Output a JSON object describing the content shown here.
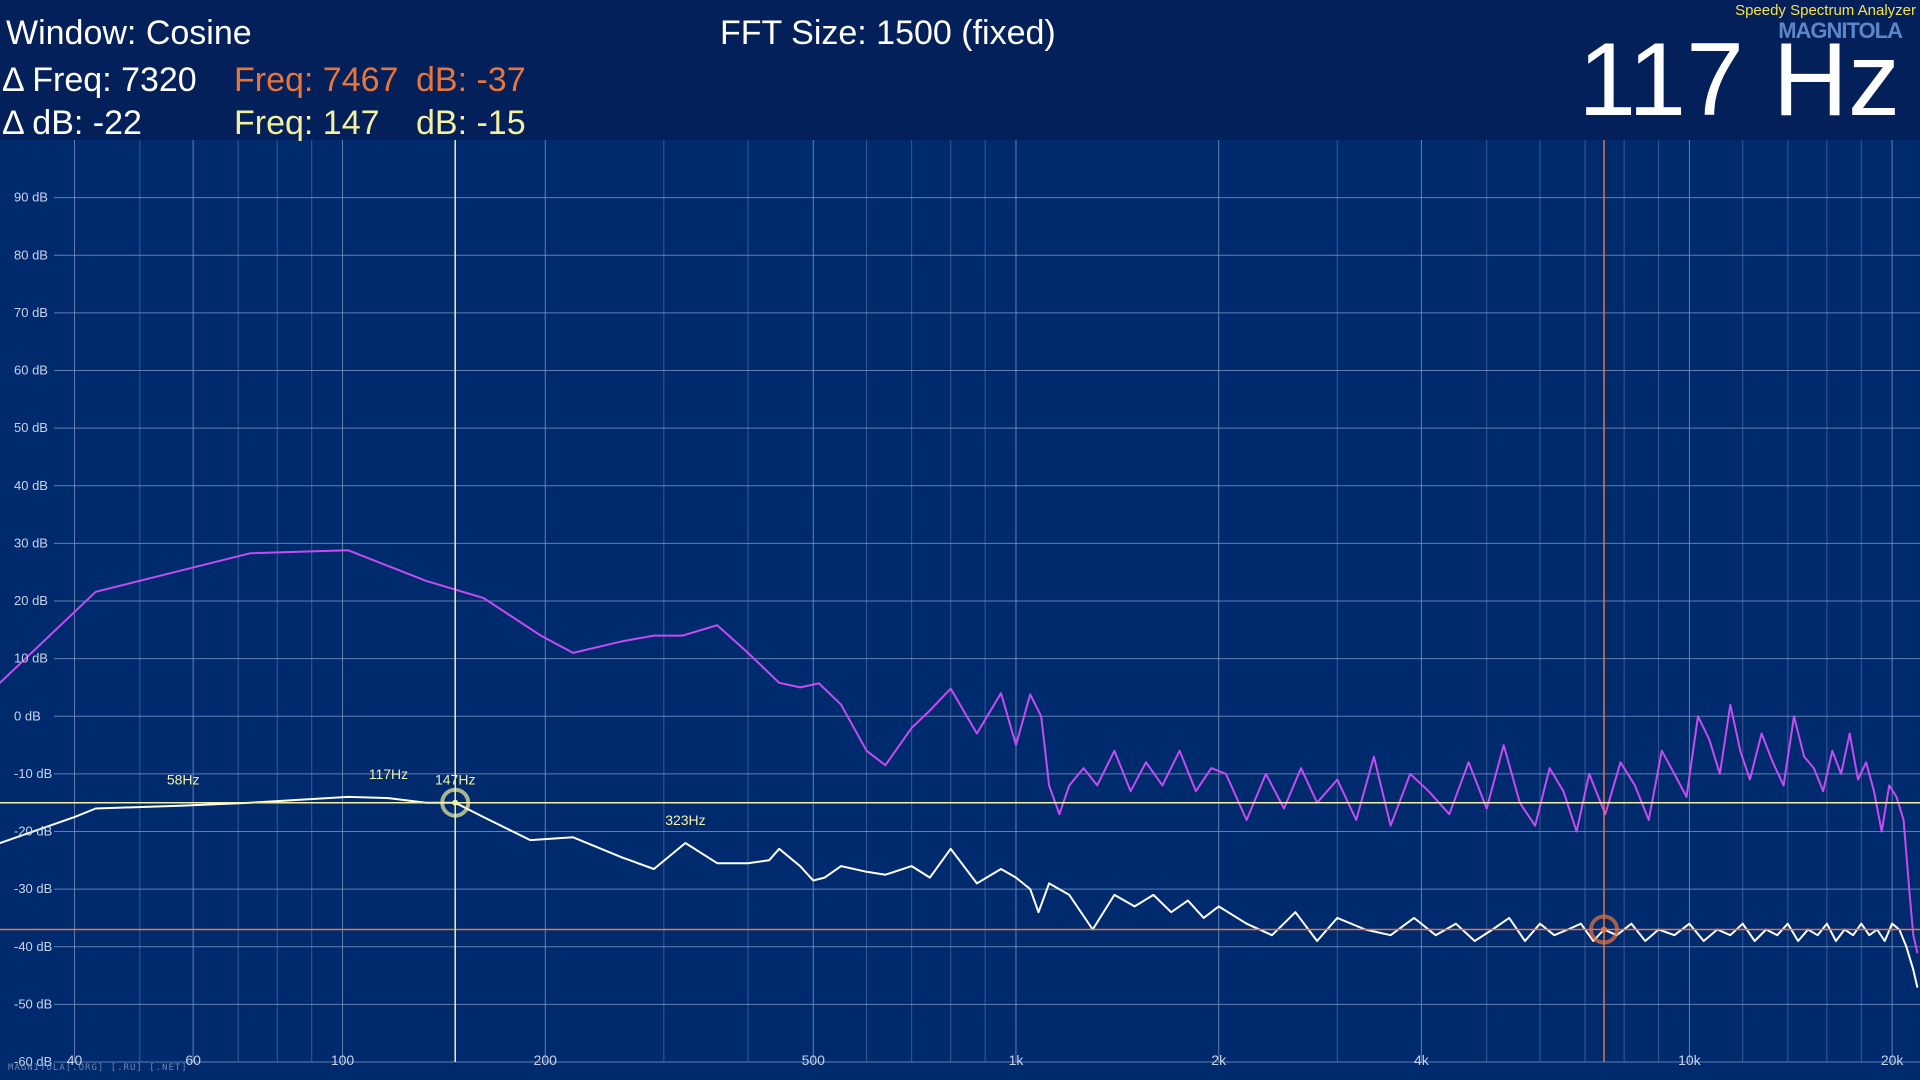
{
  "header": {
    "window_label": "Window: Cosine",
    "fft_size": "FFT Size: 1500 (fixed)",
    "delta_freq": "Δ Freq: 7320",
    "delta_db": "Δ dB: -22",
    "cursor_orange": {
      "freq": "Freq: 7467",
      "db": "dB: -37"
    },
    "cursor_yellow": {
      "freq": "Freq: 147",
      "db": "dB: -15"
    },
    "app_name": "Speedy Spectrum Analyzer",
    "logo": "MAGNITOLA",
    "big_frequency": "117 Hz"
  },
  "watermark": "MAGNITOLA[.ORG] [.RU] [.NET]",
  "colors": {
    "background": "#002a6e",
    "header": "#03205a",
    "grid": "#7d92bf",
    "magenta_series": "#c64cf0",
    "white_series": "#ffffff",
    "cursor_orange": "#e8753a",
    "cursor_yellow": "#f3f0a0",
    "marker_yellow": "#f6f2a6"
  },
  "chart_data": {
    "type": "line",
    "x_scale": "log",
    "xlim": [
      31,
      22000
    ],
    "ylim": [
      -60,
      100
    ],
    "grid": true,
    "y_ticks": [
      90,
      80,
      70,
      60,
      50,
      40,
      30,
      20,
      10,
      0,
      -10,
      -20,
      -30,
      -40,
      -50,
      -60
    ],
    "y_tick_labels": [
      "90 dB",
      "80 dB",
      "70 dB",
      "60 dB",
      "50 dB",
      "40 dB",
      "30 dB",
      "20 dB",
      "10 dB",
      "0 dB",
      "-10 dB",
      "-20 dB",
      "-30 dB",
      "-40 dB",
      "-50 dB",
      "-60 dB"
    ],
    "x_ticks": [
      40,
      60,
      100,
      200,
      500,
      1000,
      2000,
      4000,
      10000,
      20000
    ],
    "x_tick_labels": [
      "40",
      "60",
      "100",
      "200",
      "500",
      "1k",
      "2k",
      "4k",
      "10k",
      "20k"
    ],
    "minor_x_grid": [
      50,
      70,
      80,
      90,
      300,
      400,
      600,
      700,
      800,
      900,
      3000,
      5000,
      6000,
      7000,
      8000,
      9000,
      12000,
      14000,
      16000,
      18000
    ],
    "series": [
      {
        "color": "#c64cf0",
        "x": [
          31,
          43,
          73,
          102,
          133,
          162,
          197,
          220,
          260,
          290,
          320,
          360,
          400,
          445,
          478,
          510,
          550,
          600,
          640,
          700,
          745,
          800,
          875,
          950,
          1000,
          1050,
          1090,
          1120,
          1160,
          1200,
          1260,
          1320,
          1400,
          1480,
          1560,
          1650,
          1750,
          1850,
          1950,
          2050,
          2200,
          2350,
          2500,
          2650,
          2800,
          3000,
          3200,
          3400,
          3600,
          3850,
          4100,
          4400,
          4700,
          5000,
          5300,
          5600,
          5900,
          6200,
          6500,
          6800,
          7100,
          7500,
          7900,
          8300,
          8700,
          9100,
          9500,
          9900,
          10300,
          10700,
          11100,
          11500,
          11900,
          12300,
          12800,
          13300,
          13800,
          14300,
          14800,
          15300,
          15800,
          16300,
          16800,
          17300,
          17800,
          18300,
          18800,
          19300,
          19800,
          20300,
          20800,
          21200,
          21500,
          21800
        ],
        "y": [
          5.8,
          21.6,
          28.3,
          28.8,
          23.5,
          20.5,
          14.0,
          11.0,
          13.0,
          14.0,
          14.0,
          15.8,
          11.0,
          5.8,
          5.0,
          5.7,
          2.0,
          -6.0,
          -8.5,
          -2.0,
          1.0,
          4.8,
          -3.0,
          4.0,
          -5.0,
          3.8,
          0.0,
          -12.0,
          -17.0,
          -12.0,
          -9.0,
          -12.0,
          -6.0,
          -13.0,
          -8.0,
          -12.0,
          -6.0,
          -13.0,
          -9.0,
          -10.0,
          -18.0,
          -10.0,
          -16.0,
          -9.0,
          -15.0,
          -11.0,
          -18.0,
          -7.0,
          -19.0,
          -10.0,
          -13.0,
          -17.0,
          -8.0,
          -16.0,
          -5.0,
          -15.0,
          -19.0,
          -9.0,
          -13.0,
          -20.0,
          -10.0,
          -17.0,
          -8.0,
          -12.0,
          -18.0,
          -6.0,
          -10.0,
          -14.0,
          0.0,
          -4.0,
          -10.0,
          2.0,
          -6.0,
          -11.0,
          -3.0,
          -8.0,
          -12.0,
          0.0,
          -7.0,
          -9.0,
          -13.0,
          -6.0,
          -10.0,
          -3.0,
          -11.0,
          -8.0,
          -13.0,
          -20.0,
          -12.0,
          -14.0,
          -18.0,
          -30.0,
          -38.0,
          -41.0
        ]
      },
      {
        "color": "#ffffff",
        "x": [
          31,
          40,
          43,
          58,
          73,
          102,
          117,
          133,
          147,
          162,
          190,
          220,
          260,
          290,
          323,
          360,
          400,
          430,
          445,
          478,
          500,
          520,
          550,
          600,
          640,
          700,
          745,
          800,
          875,
          950,
          1000,
          1050,
          1080,
          1120,
          1200,
          1300,
          1400,
          1500,
          1600,
          1700,
          1800,
          1900,
          2000,
          2200,
          2400,
          2600,
          2800,
          3000,
          3300,
          3600,
          3900,
          4200,
          4500,
          4800,
          5100,
          5400,
          5700,
          6000,
          6300,
          6600,
          6900,
          7200,
          7467,
          7800,
          8200,
          8600,
          9000,
          9500,
          10000,
          10500,
          11000,
          11500,
          12000,
          12500,
          13000,
          13500,
          14000,
          14500,
          15000,
          15500,
          16000,
          16500,
          17000,
          17500,
          18000,
          18500,
          19000,
          19500,
          20000,
          20500,
          21000,
          21500,
          21800
        ],
        "y": [
          -22.0,
          -17.5,
          -16.0,
          -15.5,
          -15.0,
          -14.0,
          -14.2,
          -15.0,
          -15.0,
          -17.5,
          -21.5,
          -21.0,
          -24.5,
          -26.5,
          -22.0,
          -25.5,
          -25.5,
          -25.0,
          -23.0,
          -26.0,
          -28.5,
          -28.0,
          -26.0,
          -27.0,
          -27.5,
          -26.0,
          -28.0,
          -23.0,
          -29.0,
          -26.5,
          -28.0,
          -30.0,
          -34.0,
          -29.0,
          -31.0,
          -37.0,
          -31.0,
          -33.0,
          -31.0,
          -34.0,
          -32.0,
          -35.0,
          -33.0,
          -36.0,
          -38.0,
          -34.0,
          -39.0,
          -35.0,
          -37.0,
          -38.0,
          -35.0,
          -38.0,
          -36.0,
          -39.0,
          -37.0,
          -35.0,
          -39.0,
          -36.0,
          -38.0,
          -37.0,
          -36.0,
          -39.0,
          -37.0,
          -38.0,
          -36.0,
          -39.0,
          -37.0,
          -38.0,
          -36.0,
          -39.0,
          -37.0,
          -38.0,
          -36.0,
          -39.0,
          -37.0,
          -38.0,
          -36.0,
          -39.0,
          -37.0,
          -38.0,
          -36.0,
          -39.0,
          -37.0,
          -38.0,
          -36.0,
          -38.0,
          -37.0,
          -39.0,
          -36.0,
          -37.0,
          -40.0,
          -44.0,
          -47.0
        ]
      }
    ],
    "peak_labels": [
      {
        "text": "58Hz",
        "freq": 58,
        "db": -15
      },
      {
        "text": "117Hz",
        "freq": 117,
        "db": -14
      },
      {
        "text": "147Hz",
        "freq": 147,
        "db": -15
      },
      {
        "text": "323Hz",
        "freq": 323,
        "db": -22
      }
    ],
    "cursors": [
      {
        "color": "#e8753a",
        "freq": 7467,
        "db": -37
      },
      {
        "color": "#f3f0a0",
        "freq": 147,
        "db": -15
      }
    ]
  }
}
